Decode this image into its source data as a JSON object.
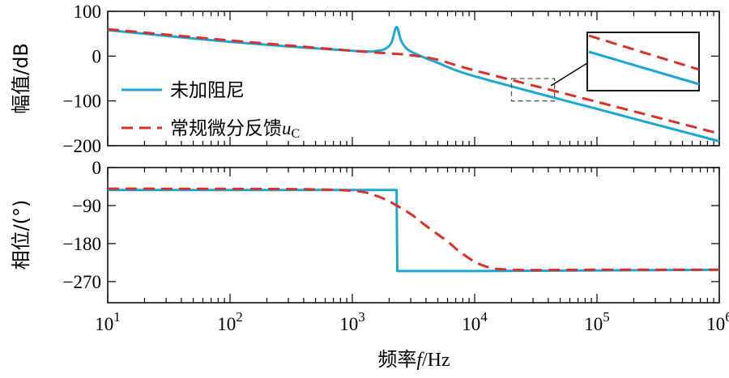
{
  "chart_data": {
    "type": "line",
    "xscale": "log",
    "xlim": [
      10,
      1000000
    ],
    "xlabel": {
      "main": "频率",
      "var": "f",
      "unit": "/Hz"
    },
    "xticks": [
      {
        "base": "10",
        "exp": "1"
      },
      {
        "base": "10",
        "exp": "2"
      },
      {
        "base": "10",
        "exp": "3"
      },
      {
        "base": "10",
        "exp": "4"
      },
      {
        "base": "10",
        "exp": "5"
      },
      {
        "base": "10",
        "exp": "6"
      }
    ],
    "colors": {
      "undamped": "#1aa7d4",
      "feedback": "#d8312c"
    },
    "legend": {
      "position": "inside-left",
      "entries": [
        {
          "key": "undamped",
          "label": "未加阻尼",
          "label_var": "",
          "label_sub": ""
        },
        {
          "key": "feedback",
          "label": "常规微分反馈",
          "label_var": "u",
          "label_sub": "C"
        }
      ]
    },
    "magnitude": {
      "ylabel": "幅值/dB",
      "ylim": [
        -200,
        100
      ],
      "yticks": [
        "100",
        "0",
        "−100",
        "−200"
      ],
      "series": {
        "undamped": [
          [
            10,
            58
          ],
          [
            100,
            32
          ],
          [
            1000,
            12
          ],
          [
            1600,
            12
          ],
          [
            1900,
            18
          ],
          [
            2100,
            32
          ],
          [
            2300,
            65
          ],
          [
            2500,
            35
          ],
          [
            2800,
            16
          ],
          [
            3300,
            5
          ],
          [
            5000,
            -15
          ],
          [
            10000,
            -45
          ],
          [
            100000,
            -118
          ],
          [
            1000000,
            -190
          ]
        ],
        "feedback": [
          [
            10,
            60
          ],
          [
            100,
            35
          ],
          [
            1000,
            12
          ],
          [
            2000,
            6
          ],
          [
            3000,
            2
          ],
          [
            5000,
            -8
          ],
          [
            10000,
            -32
          ],
          [
            100000,
            -102
          ],
          [
            1000000,
            -173
          ]
        ]
      },
      "inset": {
        "source_x": [
          20000,
          45000
        ],
        "source_y": [
          -100,
          -50
        ]
      }
    },
    "phase": {
      "ylabel": "相位/(°)",
      "ylim": [
        -320,
        0
      ],
      "yticks": [
        "0",
        "−90",
        "−180",
        "−270"
      ],
      "series": {
        "undamped": [
          [
            10,
            -53
          ],
          [
            1000,
            -53
          ],
          [
            2300,
            -53
          ],
          [
            2330,
            -245
          ],
          [
            4000,
            -245
          ],
          [
            10000,
            -245
          ],
          [
            1000000,
            -242
          ]
        ],
        "feedback": [
          [
            10,
            -50
          ],
          [
            300,
            -51
          ],
          [
            1000,
            -55
          ],
          [
            1500,
            -65
          ],
          [
            2000,
            -80
          ],
          [
            3000,
            -110
          ],
          [
            4000,
            -138
          ],
          [
            6000,
            -175
          ],
          [
            8000,
            -205
          ],
          [
            12000,
            -233
          ],
          [
            20000,
            -242
          ],
          [
            100000,
            -242
          ],
          [
            1000000,
            -242
          ]
        ]
      }
    }
  }
}
